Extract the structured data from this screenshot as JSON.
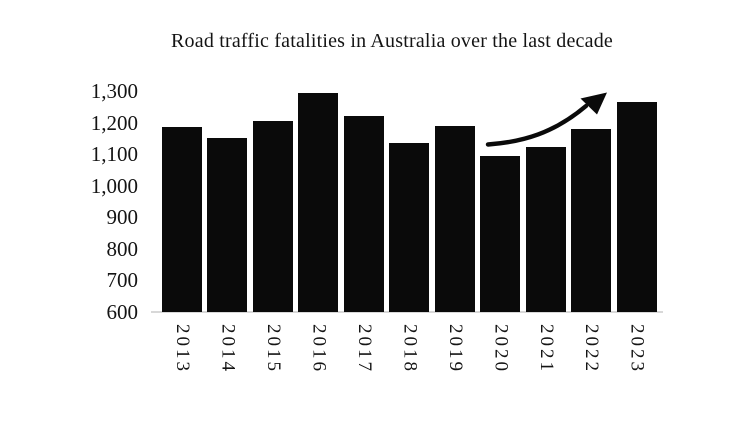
{
  "chart_data": {
    "type": "bar",
    "title": "Road traffic fatalities in Australia over the last decade",
    "categories": [
      "2013",
      "2014",
      "2015",
      "2016",
      "2017",
      "2018",
      "2019",
      "2020",
      "2021",
      "2022",
      "2023"
    ],
    "values": [
      1187,
      1150,
      1204,
      1293,
      1222,
      1135,
      1188,
      1095,
      1123,
      1180,
      1266
    ],
    "xlabel": "",
    "ylabel": "",
    "ylim": [
      600,
      1300
    ],
    "ytick_step": 100,
    "ytick_labels": [
      "600",
      "700",
      "800",
      "900",
      "1,000",
      "1,100",
      "1,200",
      "1,300"
    ],
    "grid": false,
    "legend": "none",
    "bar_color": "#0a0a0a",
    "axis_line_color": "#d8d8d8",
    "annotations": [
      {
        "type": "arrow",
        "meaning": "accelerating upward trend in fatalities toward 2023",
        "color": "#0a0a0a"
      }
    ]
  }
}
